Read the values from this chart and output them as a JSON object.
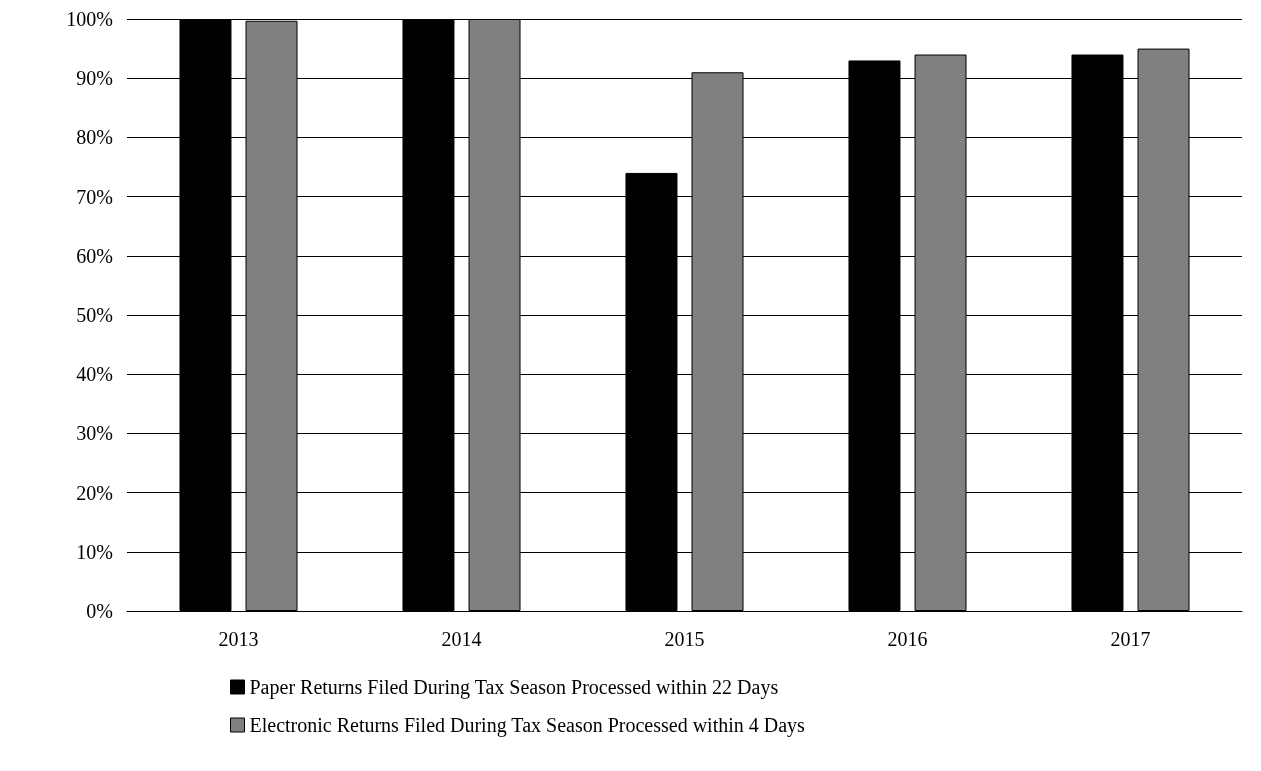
{
  "chart_data": {
    "type": "bar",
    "categories": [
      "2013",
      "2014",
      "2015",
      "2016",
      "2017"
    ],
    "series": [
      {
        "name": "Paper Returns Filed During Tax Season Processed within 22 Days",
        "color": "#000000",
        "values": [
          100,
          100,
          74,
          93,
          94
        ]
      },
      {
        "name": "Electronic Returns Filed During Tax Season Processed within 4 Days",
        "color": "#808080",
        "values": [
          99.7,
          100,
          91,
          94,
          95
        ]
      }
    ],
    "ylim": [
      0,
      100
    ],
    "yticks": [
      {
        "value": 0,
        "label": "0%"
      },
      {
        "value": 10,
        "label": "10%"
      },
      {
        "value": 20,
        "label": "20%"
      },
      {
        "value": 30,
        "label": "30%"
      },
      {
        "value": 40,
        "label": "40%"
      },
      {
        "value": 50,
        "label": "50%"
      },
      {
        "value": 60,
        "label": "60%"
      },
      {
        "value": 70,
        "label": "70%"
      },
      {
        "value": 80,
        "label": "80%"
      },
      {
        "value": 90,
        "label": "90%"
      },
      {
        "value": 100,
        "label": "100%"
      }
    ],
    "grid": "y",
    "legend": "bottom"
  }
}
